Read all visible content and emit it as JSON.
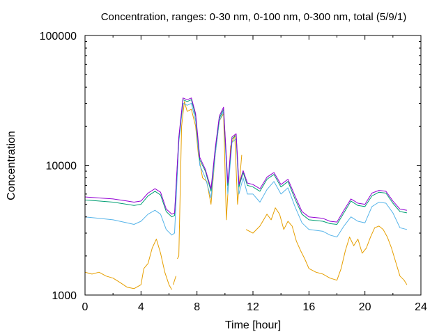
{
  "chart_data": {
    "type": "line",
    "title": "Concentration, ranges: 0-30 nm, 0-100 nm, 0-300 nm, total (5/9/1)",
    "xlabel": "Time [hour]",
    "ylabel": "Concentration",
    "xlim": [
      0,
      24
    ],
    "ylim": [
      1000,
      100000
    ],
    "yscale": "log",
    "xticks": [
      0,
      4,
      8,
      12,
      16,
      20,
      24
    ],
    "xtick_labels": [
      "0",
      "4",
      "8",
      "12",
      "16",
      "20",
      "24"
    ],
    "yticks": [
      1000,
      10000,
      100000
    ],
    "ytick_labels": [
      "1000",
      "10000",
      "100000"
    ],
    "grid": false,
    "series": [
      {
        "color": "#e69f00",
        "values": [
          [
            0,
            1500
          ],
          [
            0.5,
            1450
          ],
          [
            1,
            1500
          ],
          [
            1.5,
            1400
          ],
          [
            2,
            1350
          ],
          [
            2.5,
            1250
          ],
          [
            3,
            1150
          ],
          [
            3.5,
            1120
          ],
          [
            4,
            1200
          ],
          [
            4.2,
            1600
          ],
          [
            4.5,
            1750
          ],
          [
            4.8,
            2300
          ],
          [
            5.1,
            2700
          ],
          [
            5.4,
            2100
          ],
          [
            5.7,
            1500
          ],
          [
            6,
            1200
          ],
          [
            6.2,
            1100
          ],
          [
            null,
            null
          ],
          [
            6.3,
            1200
          ],
          [
            6.5,
            1400
          ],
          [
            null,
            null
          ],
          [
            6.6,
            1900
          ],
          [
            6.7,
            2000
          ],
          [
            6.9,
            20000
          ],
          [
            7.1,
            31000
          ],
          [
            7.3,
            26000
          ],
          [
            7.6,
            27000
          ],
          [
            7.9,
            20000
          ],
          [
            8.1,
            12000
          ],
          [
            8.4,
            8000
          ],
          [
            8.7,
            7500
          ],
          [
            9,
            5000
          ],
          [
            9.3,
            12000
          ],
          [
            9.6,
            22000
          ],
          [
            9.9,
            25000
          ],
          [
            10.1,
            3800
          ],
          [
            10.4,
            14000
          ],
          [
            10.7,
            17000
          ],
          [
            10.9,
            5000
          ],
          [
            11.2,
            12000
          ],
          [
            null,
            null
          ],
          [
            11.5,
            3200
          ],
          [
            12,
            3000
          ],
          [
            12.5,
            3400
          ],
          [
            13,
            4200
          ],
          [
            13.3,
            3800
          ],
          [
            13.6,
            4700
          ],
          [
            13.9,
            4200
          ],
          [
            14.2,
            3200
          ],
          [
            14.5,
            3700
          ],
          [
            14.8,
            3400
          ],
          [
            15.1,
            2600
          ],
          [
            15.4,
            2200
          ],
          [
            15.7,
            1900
          ],
          [
            16,
            1600
          ],
          [
            16.5,
            1500
          ],
          [
            17,
            1450
          ],
          [
            17.5,
            1350
          ],
          [
            18,
            1300
          ],
          [
            18.3,
            1600
          ],
          [
            18.6,
            2200
          ],
          [
            18.9,
            2800
          ],
          [
            19.2,
            2400
          ],
          [
            19.5,
            2700
          ],
          [
            19.8,
            2100
          ],
          [
            20.1,
            2300
          ],
          [
            20.4,
            2800
          ],
          [
            20.7,
            3300
          ],
          [
            21,
            3400
          ],
          [
            21.3,
            3200
          ],
          [
            21.6,
            2800
          ],
          [
            21.9,
            2300
          ],
          [
            22.2,
            1800
          ],
          [
            22.5,
            1400
          ],
          [
            22.8,
            1300
          ],
          [
            23,
            1200
          ]
        ]
      },
      {
        "color": "#56b4e9",
        "values": [
          [
            0,
            4000
          ],
          [
            1,
            3900
          ],
          [
            2,
            3800
          ],
          [
            3,
            3600
          ],
          [
            3.5,
            3500
          ],
          [
            4,
            3700
          ],
          [
            4.5,
            4200
          ],
          [
            5,
            4500
          ],
          [
            5.4,
            4200
          ],
          [
            5.8,
            3200
          ],
          [
            6.2,
            2900
          ],
          [
            6.4,
            3000
          ],
          [
            6.7,
            15000
          ],
          [
            7,
            30000
          ],
          [
            7.3,
            29000
          ],
          [
            7.6,
            30000
          ],
          [
            7.9,
            22000
          ],
          [
            8.2,
            10000
          ],
          [
            8.6,
            8000
          ],
          [
            9,
            5600
          ],
          [
            9.3,
            12000
          ],
          [
            9.6,
            22000
          ],
          [
            9.9,
            26000
          ],
          [
            10.2,
            6000
          ],
          [
            10.5,
            15000
          ],
          [
            10.8,
            16000
          ],
          [
            11,
            6000
          ],
          [
            11.3,
            8000
          ],
          [
            11.6,
            6000
          ],
          [
            12,
            6000
          ],
          [
            12.5,
            5200
          ],
          [
            13,
            6500
          ],
          [
            13.5,
            7500
          ],
          [
            14,
            6000
          ],
          [
            14.5,
            6700
          ],
          [
            15,
            4800
          ],
          [
            15.5,
            3600
          ],
          [
            16,
            3200
          ],
          [
            17,
            3100
          ],
          [
            17.5,
            2900
          ],
          [
            18,
            2800
          ],
          [
            18.5,
            3400
          ],
          [
            19,
            4000
          ],
          [
            19.5,
            3700
          ],
          [
            20,
            3600
          ],
          [
            20.5,
            4800
          ],
          [
            21,
            5200
          ],
          [
            21.5,
            5100
          ],
          [
            22,
            4300
          ],
          [
            22.5,
            3300
          ],
          [
            23,
            3200
          ]
        ]
      },
      {
        "color": "#009e73",
        "values": [
          [
            0,
            5400
          ],
          [
            1,
            5300
          ],
          [
            2,
            5200
          ],
          [
            3,
            5000
          ],
          [
            3.5,
            4900
          ],
          [
            4,
            5000
          ],
          [
            4.5,
            5800
          ],
          [
            5,
            6300
          ],
          [
            5.4,
            5900
          ],
          [
            5.8,
            4400
          ],
          [
            6.2,
            4000
          ],
          [
            6.4,
            4100
          ],
          [
            6.7,
            16000
          ],
          [
            7,
            32000
          ],
          [
            7.3,
            31000
          ],
          [
            7.6,
            32000
          ],
          [
            7.9,
            24000
          ],
          [
            8.2,
            11000
          ],
          [
            8.6,
            9000
          ],
          [
            9,
            6300
          ],
          [
            9.3,
            13000
          ],
          [
            9.6,
            23000
          ],
          [
            9.9,
            27000
          ],
          [
            10.2,
            7000
          ],
          [
            10.5,
            16000
          ],
          [
            10.8,
            17000
          ],
          [
            11,
            6800
          ],
          [
            11.3,
            8800
          ],
          [
            11.6,
            7000
          ],
          [
            12,
            6800
          ],
          [
            12.5,
            6300
          ],
          [
            13,
            7800
          ],
          [
            13.5,
            8500
          ],
          [
            14,
            6800
          ],
          [
            14.5,
            7500
          ],
          [
            15,
            5500
          ],
          [
            15.5,
            4200
          ],
          [
            16,
            3800
          ],
          [
            17,
            3700
          ],
          [
            17.5,
            3550
          ],
          [
            18,
            3500
          ],
          [
            18.5,
            4300
          ],
          [
            19,
            5300
          ],
          [
            19.5,
            4900
          ],
          [
            20,
            4800
          ],
          [
            20.5,
            5800
          ],
          [
            21,
            6200
          ],
          [
            21.5,
            6100
          ],
          [
            22,
            5100
          ],
          [
            22.5,
            4400
          ],
          [
            23,
            4300
          ]
        ]
      },
      {
        "color": "#9400d3",
        "values": [
          [
            0,
            5700
          ],
          [
            1,
            5600
          ],
          [
            2,
            5500
          ],
          [
            3,
            5300
          ],
          [
            3.5,
            5200
          ],
          [
            4,
            5300
          ],
          [
            4.5,
            6100
          ],
          [
            5,
            6600
          ],
          [
            5.4,
            6200
          ],
          [
            5.8,
            4600
          ],
          [
            6.2,
            4200
          ],
          [
            6.4,
            4300
          ],
          [
            6.7,
            16500
          ],
          [
            7,
            33000
          ],
          [
            7.3,
            32000
          ],
          [
            7.6,
            33000
          ],
          [
            7.9,
            25000
          ],
          [
            8.2,
            11500
          ],
          [
            8.6,
            9300
          ],
          [
            9,
            6600
          ],
          [
            9.3,
            13500
          ],
          [
            9.6,
            24000
          ],
          [
            9.9,
            28000
          ],
          [
            10.2,
            7300
          ],
          [
            10.5,
            16500
          ],
          [
            10.8,
            17500
          ],
          [
            11,
            7100
          ],
          [
            11.3,
            9100
          ],
          [
            11.6,
            7300
          ],
          [
            12,
            7100
          ],
          [
            12.5,
            6600
          ],
          [
            13,
            8100
          ],
          [
            13.5,
            8800
          ],
          [
            14,
            7100
          ],
          [
            14.5,
            7800
          ],
          [
            15,
            5800
          ],
          [
            15.5,
            4400
          ],
          [
            16,
            4000
          ],
          [
            17,
            3900
          ],
          [
            17.5,
            3700
          ],
          [
            18,
            3650
          ],
          [
            18.5,
            4500
          ],
          [
            19,
            5500
          ],
          [
            19.5,
            5100
          ],
          [
            20,
            5000
          ],
          [
            20.5,
            6100
          ],
          [
            21,
            6400
          ],
          [
            21.5,
            6300
          ],
          [
            22,
            5300
          ],
          [
            22.5,
            4600
          ],
          [
            23,
            4500
          ]
        ]
      }
    ]
  }
}
